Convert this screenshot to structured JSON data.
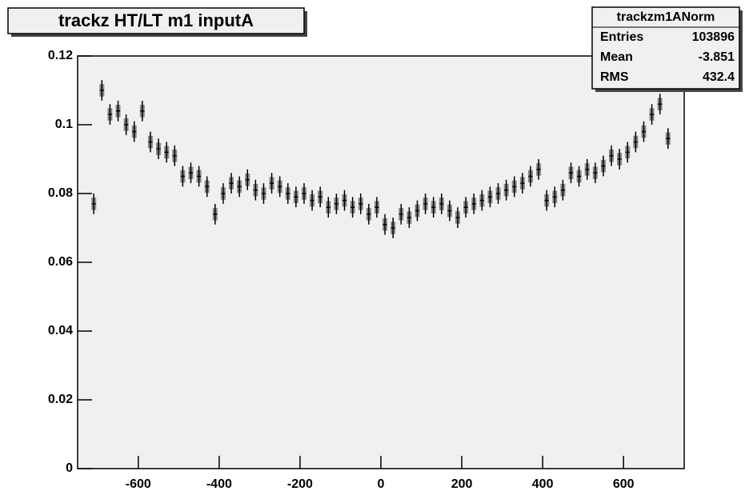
{
  "chart_data": {
    "type": "errorbar",
    "title": "trackz HT/LT m1 inputA",
    "x": [
      -710,
      -690,
      -670,
      -650,
      -630,
      -610,
      -590,
      -570,
      -550,
      -530,
      -510,
      -490,
      -470,
      -450,
      -430,
      -410,
      -390,
      -370,
      -350,
      -330,
      -310,
      -290,
      -270,
      -250,
      -230,
      -210,
      -190,
      -170,
      -150,
      -130,
      -110,
      -90,
      -70,
      -50,
      -30,
      -10,
      10,
      30,
      50,
      70,
      90,
      110,
      130,
      150,
      170,
      190,
      210,
      230,
      250,
      270,
      290,
      310,
      330,
      350,
      370,
      390,
      410,
      430,
      450,
      470,
      490,
      510,
      530,
      550,
      570,
      590,
      610,
      630,
      650,
      670,
      690,
      710
    ],
    "values": [
      0.077,
      0.11,
      0.103,
      0.104,
      0.1,
      0.098,
      0.104,
      0.095,
      0.093,
      0.092,
      0.091,
      0.085,
      0.086,
      0.085,
      0.082,
      0.074,
      0.08,
      0.083,
      0.082,
      0.084,
      0.081,
      0.08,
      0.083,
      0.082,
      0.08,
      0.079,
      0.08,
      0.078,
      0.079,
      0.076,
      0.077,
      0.078,
      0.076,
      0.077,
      0.074,
      0.076,
      0.071,
      0.07,
      0.074,
      0.073,
      0.075,
      0.077,
      0.076,
      0.077,
      0.075,
      0.073,
      0.076,
      0.077,
      0.078,
      0.079,
      0.08,
      0.081,
      0.082,
      0.083,
      0.085,
      0.087,
      0.078,
      0.079,
      0.081,
      0.086,
      0.085,
      0.087,
      0.086,
      0.088,
      0.091,
      0.09,
      0.092,
      0.095,
      0.098,
      0.103,
      0.106,
      0.096
    ],
    "yerr": 0.003,
    "color": "#000000",
    "xlim": [
      -750,
      750
    ],
    "xticks": [
      -600,
      -400,
      -200,
      0,
      200,
      400,
      600
    ],
    "ylim": [
      0,
      0.12
    ],
    "yticks": [
      0,
      0.02,
      0.04,
      0.06,
      0.08,
      0.1,
      0.12
    ],
    "stats": {
      "name": "trackzm1ANorm",
      "rows": [
        [
          "Entries",
          103896
        ],
        [
          "Mean",
          -3.851
        ],
        [
          "RMS",
          432.4
        ]
      ]
    }
  }
}
